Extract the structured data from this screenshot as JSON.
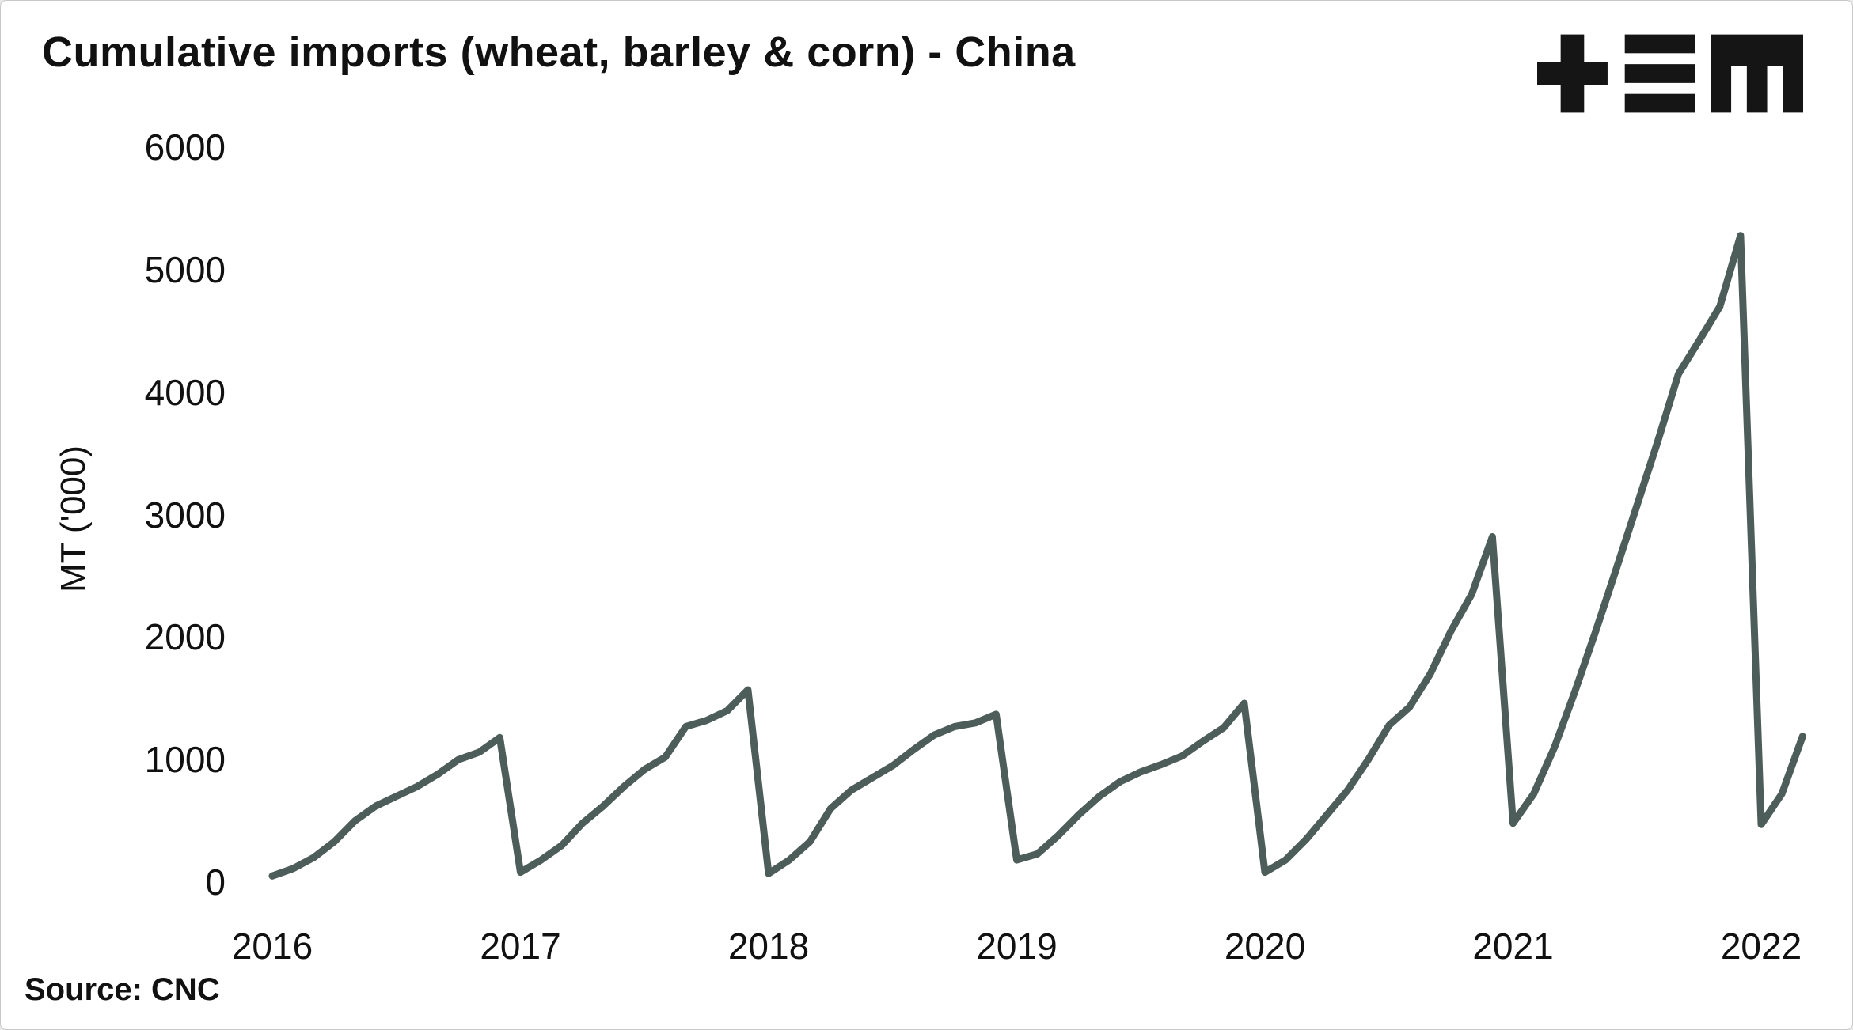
{
  "header": {
    "title": "Cumulative imports (wheat, barley & corn) - China",
    "logo": "tem-brand-mark"
  },
  "source": {
    "label": "Source: CNC"
  },
  "chart_data": {
    "type": "line",
    "title": "Cumulative imports (wheat, barley & corn) - China",
    "xlabel": "",
    "ylabel": "MT ('000)",
    "ylim": [
      0,
      6000
    ],
    "y_ticks": [
      0,
      1000,
      2000,
      3000,
      4000,
      5000,
      6000
    ],
    "x_ticks": [
      2016,
      2017,
      2018,
      2019,
      2020,
      2021,
      2022
    ],
    "grid": false,
    "legend": "none",
    "line_color": "#4d5d59",
    "x_unit": "monthly, cumulative within each calendar year (resets each January)",
    "range": "2016-01 to 2022-03",
    "years": [
      {
        "year": 2016,
        "values": [
          50,
          110,
          200,
          330,
          500,
          620,
          700,
          780,
          880,
          1000,
          1060,
          1180
        ]
      },
      {
        "year": 2017,
        "values": [
          80,
          180,
          300,
          480,
          620,
          780,
          920,
          1020,
          1270,
          1320,
          1400,
          1570
        ]
      },
      {
        "year": 2018,
        "values": [
          70,
          180,
          330,
          600,
          750,
          850,
          950,
          1080,
          1200,
          1270,
          1300,
          1370
        ]
      },
      {
        "year": 2019,
        "values": [
          180,
          230,
          380,
          550,
          700,
          820,
          900,
          960,
          1030,
          1150,
          1260,
          1460
        ]
      },
      {
        "year": 2020,
        "values": [
          80,
          180,
          350,
          550,
          750,
          1000,
          1280,
          1430,
          1700,
          2050,
          2350,
          2820
        ]
      },
      {
        "year": 2021,
        "values": [
          480,
          720,
          1100,
          1560,
          2050,
          2560,
          3080,
          3600,
          4150,
          4420,
          4700,
          5280
        ]
      },
      {
        "year": 2022,
        "values": [
          470,
          720,
          1190
        ]
      }
    ]
  }
}
